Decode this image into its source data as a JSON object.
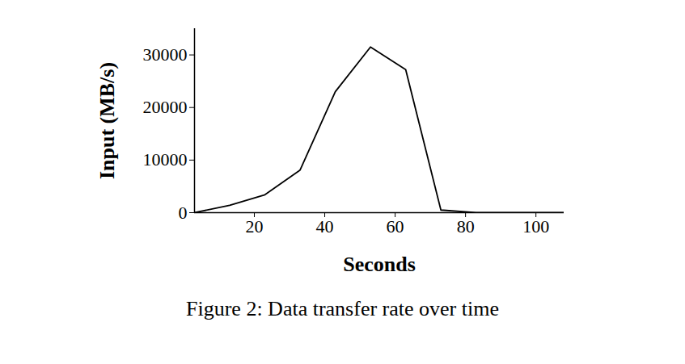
{
  "chart_data": {
    "type": "line",
    "caption": "Figure 2: Data transfer rate over time",
    "x_label": "Seconds",
    "y_label": "Input (MB/s)",
    "x": [
      3,
      13,
      23,
      33,
      43,
      53,
      63,
      73,
      83,
      93,
      103,
      108
    ],
    "values": [
      0,
      1400,
      3400,
      8100,
      23000,
      31500,
      27200,
      500,
      0,
      0,
      0,
      0
    ],
    "color": "#000000",
    "line_style": "solid",
    "xlim": [
      3,
      108
    ],
    "xticks": [
      20,
      40,
      60,
      80,
      100
    ],
    "ylim": [
      0,
      35000
    ],
    "yticks": [
      0,
      10000,
      20000,
      30000
    ],
    "grid": false
  }
}
